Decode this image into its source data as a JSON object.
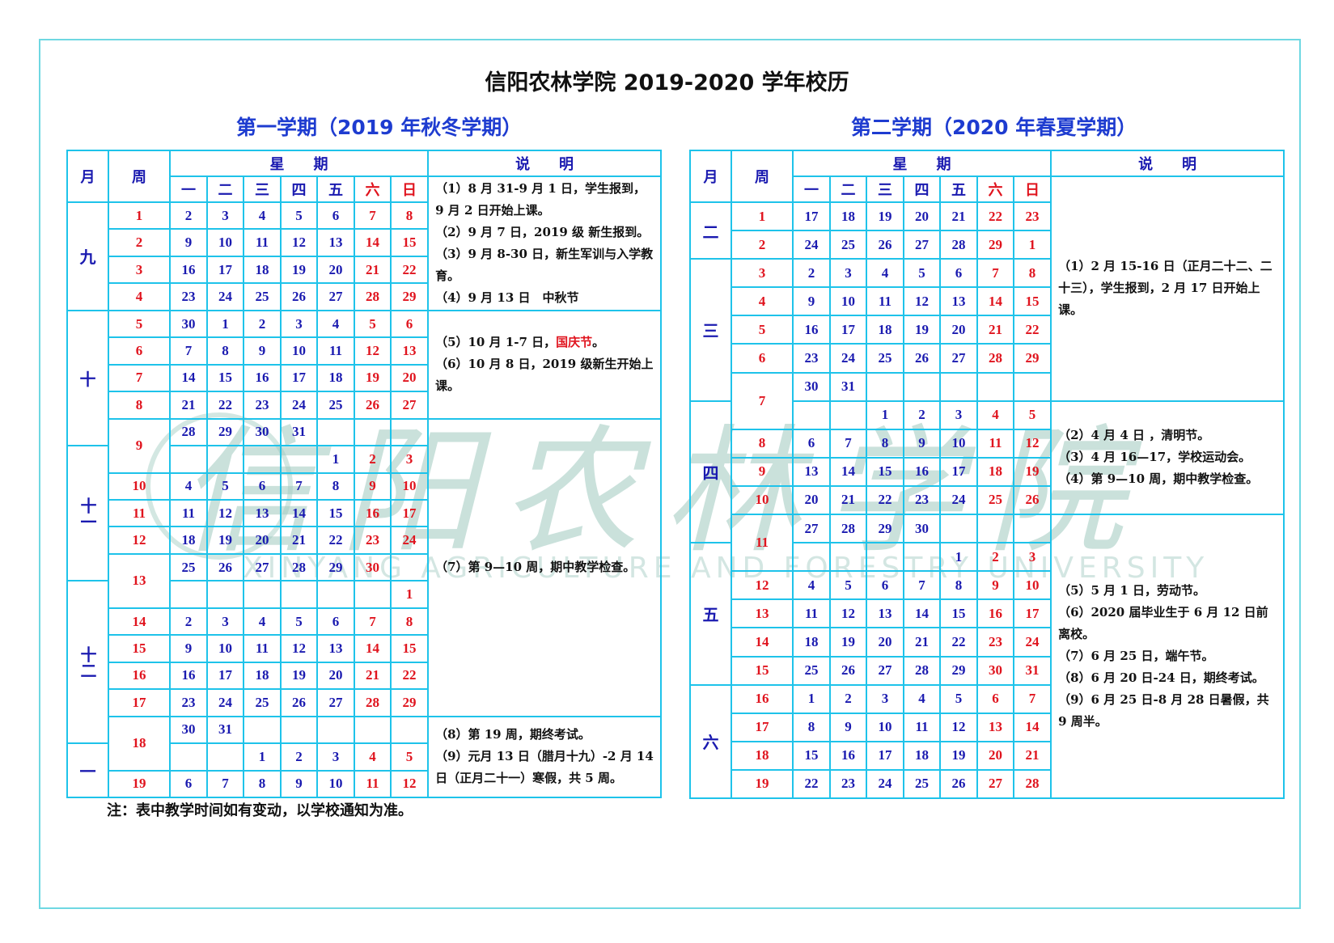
{
  "title": "信阳农林学院 2019-2020 学年校历",
  "footnote": "注：表中教学时间如有变动，以学校通知为准。",
  "watermark": {
    "cn": "信阳农林学院",
    "en": "XINYANG AGRICULTURE AND FORESTRY UNIVERSITY"
  },
  "colors": {
    "border": "#1ec3ea",
    "frame": "#6fd8e2",
    "blue_text": "#1a1ab0",
    "red_text": "#e0141e",
    "subtitle": "#1e3cd0",
    "watermark": "#9fc9bf"
  },
  "headers": {
    "month": "月",
    "week": "周",
    "weekday_group": "星　　期",
    "notes": "说　　明",
    "weekdays": [
      "一",
      "二",
      "三",
      "四",
      "五",
      "六",
      "日"
    ]
  },
  "semesters": [
    {
      "subtitle": "第一学期（2019 年秋冬学期）",
      "rows": [
        {
          "month": "九",
          "week": "1",
          "days": [
            "2",
            "3",
            "4",
            "5",
            "6",
            "7",
            "8"
          ],
          "note": 0
        },
        {
          "month": "九",
          "week": "2",
          "days": [
            "9",
            "10",
            "11",
            "12",
            "13",
            "14",
            "15"
          ],
          "note": 0
        },
        {
          "month": "九",
          "week": "3",
          "days": [
            "16",
            "17",
            "18",
            "19",
            "20",
            "21",
            "22"
          ],
          "note": 0
        },
        {
          "month": "九",
          "week": "4",
          "days": [
            "23",
            "24",
            "25",
            "26",
            "27",
            "28",
            "29"
          ],
          "note": 0
        },
        {
          "month": "十",
          "week": "5",
          "days": [
            "30",
            "1",
            "2",
            "3",
            "4",
            "5",
            "6"
          ],
          "note": 1
        },
        {
          "month": "十",
          "week": "6",
          "days": [
            "7",
            "8",
            "9",
            "10",
            "11",
            "12",
            "13"
          ],
          "note": 1
        },
        {
          "month": "十",
          "week": "7",
          "days": [
            "14",
            "15",
            "16",
            "17",
            "18",
            "19",
            "20"
          ],
          "note": 1
        },
        {
          "month": "十",
          "week": "8",
          "days": [
            "21",
            "22",
            "23",
            "24",
            "25",
            "26",
            "27"
          ],
          "note": 1
        },
        {
          "month": "十",
          "week": "9",
          "days": [
            "28",
            "29",
            "30",
            "31",
            "",
            "",
            ""
          ],
          "note": 2
        },
        {
          "month": "十一",
          "week": "9",
          "days": [
            "",
            "",
            "",
            "",
            "1",
            "2",
            "3"
          ],
          "note": 2
        },
        {
          "month": "十一",
          "week": "10",
          "days": [
            "4",
            "5",
            "6",
            "7",
            "8",
            "9",
            "10"
          ],
          "note": 2
        },
        {
          "month": "十一",
          "week": "11",
          "days": [
            "11",
            "12",
            "13",
            "14",
            "15",
            "16",
            "17"
          ],
          "note": 2
        },
        {
          "month": "十一",
          "week": "12",
          "days": [
            "18",
            "19",
            "20",
            "21",
            "22",
            "23",
            "24"
          ],
          "note": 2
        },
        {
          "month": "十一",
          "week": "13",
          "days": [
            "25",
            "26",
            "27",
            "28",
            "29",
            "30",
            ""
          ],
          "note": 2
        },
        {
          "month": "十二",
          "week": "13",
          "days": [
            "",
            "",
            "",
            "",
            "",
            "",
            "1"
          ],
          "note": 2
        },
        {
          "month": "十二",
          "week": "14",
          "days": [
            "2",
            "3",
            "4",
            "5",
            "6",
            "7",
            "8"
          ],
          "note": 2
        },
        {
          "month": "十二",
          "week": "15",
          "days": [
            "9",
            "10",
            "11",
            "12",
            "13",
            "14",
            "15"
          ],
          "note": 2
        },
        {
          "month": "十二",
          "week": "16",
          "days": [
            "16",
            "17",
            "18",
            "19",
            "20",
            "21",
            "22"
          ],
          "note": 2
        },
        {
          "month": "十二",
          "week": "17",
          "days": [
            "23",
            "24",
            "25",
            "26",
            "27",
            "28",
            "29"
          ],
          "note": 2
        },
        {
          "month": "十二",
          "week": "18",
          "days": [
            "30",
            "31",
            "",
            "",
            "",
            "",
            ""
          ],
          "note": 3
        },
        {
          "month": "一",
          "week": "18",
          "days": [
            "",
            "",
            "1",
            "2",
            "3",
            "4",
            "5"
          ],
          "note": 3
        },
        {
          "month": "一",
          "week": "19",
          "days": [
            "6",
            "7",
            "8",
            "9",
            "10",
            "11",
            "12"
          ],
          "note": 3
        }
      ],
      "notes": [
        [
          [
            {
              "t": "（1）8 月 31-9 月 1 日，学生报到，9 月 2 日开始上课。"
            }
          ],
          [
            {
              "t": "（2）9 月 7 日，2019 级 新生报到。"
            }
          ],
          [
            {
              "t": "（3）9 月 8-30 日，新生军训与入学教育。"
            }
          ],
          [
            {
              "t": "（4）9 月 13 日　中秋节"
            }
          ]
        ],
        [
          [
            {
              "t": "（5）10 月 1-7 日，"
            },
            {
              "t": "国庆节",
              "red": true
            },
            {
              "t": "。"
            }
          ],
          [
            {
              "t": "（6）10 月 8 日，2019 级新生开始上课。"
            }
          ]
        ],
        [
          [
            {
              "t": "（7）第 9—10 周，期中教学检查。"
            }
          ]
        ],
        [
          [
            {
              "t": "（8）第 19 周，期终考试。"
            }
          ],
          [
            {
              "t": "（9）元月 13 日（腊月十九）-2 月 14 日（正月二十一）寒假，共 5 周。"
            }
          ]
        ]
      ]
    },
    {
      "subtitle": "第二学期（2020 年春夏学期）",
      "rows": [
        {
          "month": "二",
          "week": "1",
          "days": [
            "17",
            "18",
            "19",
            "20",
            "21",
            "22",
            "23"
          ],
          "note": 0
        },
        {
          "month": "二",
          "week": "2",
          "days": [
            "24",
            "25",
            "26",
            "27",
            "28",
            "29",
            "1"
          ],
          "note": 0
        },
        {
          "month": "三",
          "week": "3",
          "days": [
            "2",
            "3",
            "4",
            "5",
            "6",
            "7",
            "8"
          ],
          "note": 0
        },
        {
          "month": "三",
          "week": "4",
          "days": [
            "9",
            "10",
            "11",
            "12",
            "13",
            "14",
            "15"
          ],
          "note": 0
        },
        {
          "month": "三",
          "week": "5",
          "days": [
            "16",
            "17",
            "18",
            "19",
            "20",
            "21",
            "22"
          ],
          "note": 0
        },
        {
          "month": "三",
          "week": "6",
          "days": [
            "23",
            "24",
            "25",
            "26",
            "27",
            "28",
            "29"
          ],
          "note": 0
        },
        {
          "month": "三",
          "week": "7",
          "days": [
            "30",
            "31",
            "",
            "",
            "",
            "",
            ""
          ],
          "note": 0
        },
        {
          "month": "四",
          "week": "7",
          "days": [
            "",
            "",
            "1",
            "2",
            "3",
            "4",
            "5"
          ],
          "note": 1
        },
        {
          "month": "四",
          "week": "8",
          "days": [
            "6",
            "7",
            "8",
            "9",
            "10",
            "11",
            "12"
          ],
          "note": 1
        },
        {
          "month": "四",
          "week": "9",
          "days": [
            "13",
            "14",
            "15",
            "16",
            "17",
            "18",
            "19"
          ],
          "note": 1
        },
        {
          "month": "四",
          "week": "10",
          "days": [
            "20",
            "21",
            "22",
            "23",
            "24",
            "25",
            "26"
          ],
          "note": 1
        },
        {
          "month": "四",
          "week": "11",
          "days": [
            "27",
            "28",
            "29",
            "30",
            "",
            "",
            ""
          ],
          "note": 2
        },
        {
          "month": "五",
          "week": "11",
          "days": [
            "",
            "",
            "",
            "",
            "1",
            "2",
            "3"
          ],
          "note": 2
        },
        {
          "month": "五",
          "week": "12",
          "days": [
            "4",
            "5",
            "6",
            "7",
            "8",
            "9",
            "10"
          ],
          "note": 2
        },
        {
          "month": "五",
          "week": "13",
          "days": [
            "11",
            "12",
            "13",
            "14",
            "15",
            "16",
            "17"
          ],
          "note": 2
        },
        {
          "month": "五",
          "week": "14",
          "days": [
            "18",
            "19",
            "20",
            "21",
            "22",
            "23",
            "24"
          ],
          "note": 2
        },
        {
          "month": "五",
          "week": "15",
          "days": [
            "25",
            "26",
            "27",
            "28",
            "29",
            "30",
            "31"
          ],
          "note": 2
        },
        {
          "month": "六",
          "week": "16",
          "days": [
            "1",
            "2",
            "3",
            "4",
            "5",
            "6",
            "7"
          ],
          "note": 2
        },
        {
          "month": "六",
          "week": "17",
          "days": [
            "8",
            "9",
            "10",
            "11",
            "12",
            "13",
            "14"
          ],
          "note": 2
        },
        {
          "month": "六",
          "week": "18",
          "days": [
            "15",
            "16",
            "17",
            "18",
            "19",
            "20",
            "21"
          ],
          "note": 2
        },
        {
          "month": "六",
          "week": "19",
          "days": [
            "22",
            "23",
            "24",
            "25",
            "26",
            "27",
            "28"
          ],
          "note": 2
        }
      ],
      "notes": [
        [
          [
            {
              "t": "（1）2 月 15-16 日（正月二十二、二十三），学生报到，2 月 17 日开始上课。"
            }
          ]
        ],
        [
          [
            {
              "t": "（2）4 月 4 日 ，清明节。"
            }
          ],
          [
            {
              "t": "（3）4 月 16—17，学校运动会。"
            }
          ],
          [
            {
              "t": "（4）第 9—10 周，期中教学检查。"
            }
          ]
        ],
        [
          [
            {
              "t": "（5）5 月 1 日，劳动节。"
            }
          ],
          [
            {
              "t": "（6）2020 届毕业生于 6 月 12 日前离校。"
            }
          ],
          [
            {
              "t": "（7）6 月 25 日，端午节。"
            }
          ],
          [
            {
              "t": "（8）6 月 20 日-24 日，期终考试。"
            }
          ],
          [
            {
              "t": "（9）6 月 25 日-8 月 28 日暑假，共 9 周半。"
            }
          ]
        ]
      ]
    }
  ]
}
